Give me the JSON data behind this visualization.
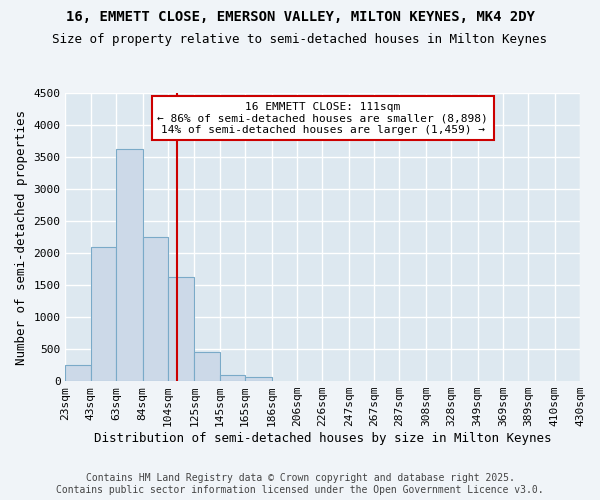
{
  "title1": "16, EMMETT CLOSE, EMERSON VALLEY, MILTON KEYNES, MK4 2DY",
  "title2": "Size of property relative to semi-detached houses in Milton Keynes",
  "xlabel": "Distribution of semi-detached houses by size in Milton Keynes",
  "ylabel": "Number of semi-detached properties",
  "footer1": "Contains HM Land Registry data © Crown copyright and database right 2025.",
  "footer2": "Contains public sector information licensed under the Open Government Licence v3.0.",
  "bar_edges": [
    23,
    43,
    63,
    84,
    104,
    125,
    145,
    165,
    186,
    206,
    226,
    247,
    267,
    287,
    308,
    328,
    349,
    369,
    389,
    410,
    430
  ],
  "bar_values": [
    250,
    2100,
    3620,
    2250,
    1620,
    450,
    100,
    60,
    0,
    0,
    0,
    0,
    0,
    0,
    0,
    0,
    0,
    0,
    0,
    0
  ],
  "bar_color": "#ccd9e8",
  "bar_edge_color": "#7aaac8",
  "vline_x": 111,
  "vline_color": "#cc0000",
  "ylim": [
    0,
    4500
  ],
  "yticks": [
    0,
    500,
    1000,
    1500,
    2000,
    2500,
    3000,
    3500,
    4000,
    4500
  ],
  "annotation_title": "16 EMMETT CLOSE: 111sqm",
  "annotation_line1": "← 86% of semi-detached houses are smaller (8,898)",
  "annotation_line2": "14% of semi-detached houses are larger (1,459) →",
  "annotation_box_color": "#ffffff",
  "annotation_box_edge_color": "#cc0000",
  "bg_color": "#f0f4f8",
  "plot_bg_color": "#dde8f0",
  "grid_color": "#ffffff",
  "title_fontsize": 10,
  "subtitle_fontsize": 9,
  "axis_label_fontsize": 9,
  "tick_fontsize": 8,
  "annotation_fontsize": 8,
  "footer_fontsize": 7
}
